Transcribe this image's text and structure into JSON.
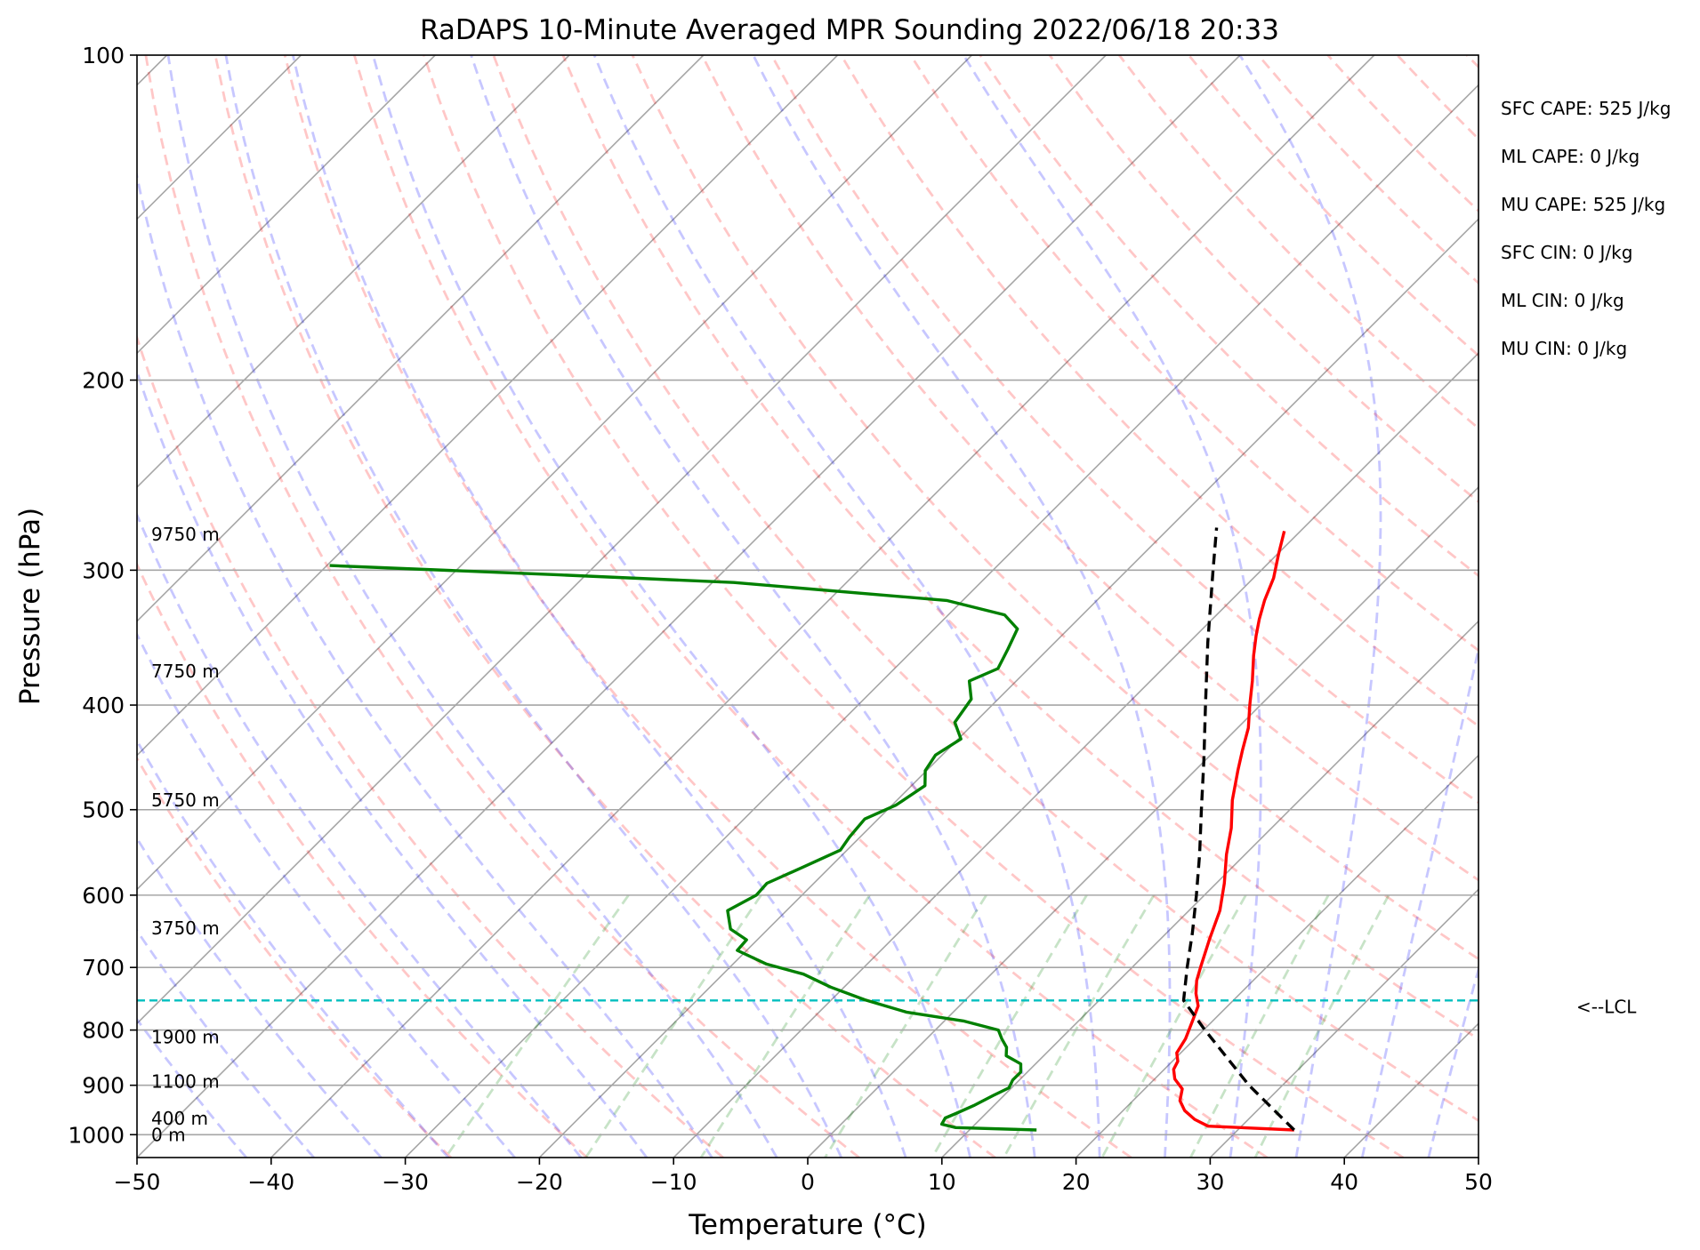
{
  "chart_data": {
    "type": "line",
    "subtype": "skew-t log-p sounding",
    "title": "RaDAPS 10-Minute Averaged MPR Sounding 2022/06/18 20:33",
    "xlabel": "Temperature (°C)",
    "ylabel": "Pressure (hPa)",
    "xlim": [
      -50,
      50
    ],
    "ylim": [
      1050,
      100
    ],
    "y_scale": "log",
    "x_ticks": [
      "−50",
      "−40",
      "−30",
      "−20",
      "−10",
      "0",
      "10",
      "20",
      "30",
      "40",
      "50"
    ],
    "y_ticks": [
      "100",
      "200",
      "300",
      "400",
      "500",
      "600",
      "700",
      "800",
      "900",
      "1000"
    ],
    "height_labels": [
      {
        "text": "9750 m",
        "pressure": 278
      },
      {
        "text": "7750 m",
        "pressure": 372
      },
      {
        "text": "5750 m",
        "pressure": 490
      },
      {
        "text": "3750 m",
        "pressure": 644
      },
      {
        "text": "1900 m",
        "pressure": 812
      },
      {
        "text": "1100 m",
        "pressure": 893
      },
      {
        "text": "400 m",
        "pressure": 966
      },
      {
        "text": "0 m",
        "pressure": 1000
      }
    ],
    "indices": [
      "SFC CAPE: 525 J/kg",
      "ML CAPE: 0 J/kg",
      "MU CAPE: 525 J/kg",
      "SFC CIN: 0 J/kg",
      "ML CIN: 0 J/kg",
      "MU CIN: 0 J/kg"
    ],
    "lcl": {
      "label": "<--LCL",
      "pressure": 751
    },
    "series": [
      {
        "color": "#ff0000",
        "points": [
          [
            990,
            34.2
          ],
          [
            982,
            27.5
          ],
          [
            968,
            26.0
          ],
          [
            950,
            24.6
          ],
          [
            930,
            23.5
          ],
          [
            907,
            22.8
          ],
          [
            888,
            21.5
          ],
          [
            870,
            20.7
          ],
          [
            855,
            20.4
          ],
          [
            840,
            19.7
          ],
          [
            815,
            19.3
          ],
          [
            785,
            18.5
          ],
          [
            760,
            17.8
          ],
          [
            740,
            16.7
          ],
          [
            720,
            15.8
          ],
          [
            700,
            15.1
          ],
          [
            660,
            13.7
          ],
          [
            620,
            12.3
          ],
          [
            585,
            10.6
          ],
          [
            550,
            8.6
          ],
          [
            520,
            7.0
          ],
          [
            490,
            5.0
          ],
          [
            460,
            3.2
          ],
          [
            440,
            2.0
          ],
          [
            420,
            0.8
          ],
          [
            400,
            -0.8
          ],
          [
            380,
            -2.4
          ],
          [
            360,
            -4.2
          ],
          [
            345,
            -5.5
          ],
          [
            333,
            -6.5
          ],
          [
            320,
            -7.5
          ],
          [
            305,
            -8.5
          ],
          [
            290,
            -9.9
          ],
          [
            276,
            -11.2
          ]
        ]
      },
      {
        "color": "#008000",
        "points": [
          [
            990,
            15.0
          ],
          [
            985,
            8.8
          ],
          [
            978,
            7.5
          ],
          [
            965,
            7.3
          ],
          [
            955,
            7.8
          ],
          [
            940,
            8.5
          ],
          [
            920,
            9.2
          ],
          [
            905,
            9.8
          ],
          [
            890,
            9.5
          ],
          [
            875,
            9.5
          ],
          [
            860,
            8.9
          ],
          [
            845,
            7.2
          ],
          [
            830,
            6.6
          ],
          [
            815,
            5.6
          ],
          [
            800,
            4.7
          ],
          [
            785,
            1.5
          ],
          [
            770,
            -3.5
          ],
          [
            750,
            -7.5
          ],
          [
            730,
            -11.0
          ],
          [
            710,
            -14.0
          ],
          [
            695,
            -17.5
          ],
          [
            675,
            -20.7
          ],
          [
            660,
            -20.8
          ],
          [
            645,
            -22.8
          ],
          [
            620,
            -24.4
          ],
          [
            600,
            -23.4
          ],
          [
            585,
            -23.5
          ],
          [
            565,
            -22.0
          ],
          [
            545,
            -20.5
          ],
          [
            530,
            -20.8
          ],
          [
            510,
            -21.0
          ],
          [
            495,
            -19.7
          ],
          [
            475,
            -19.0
          ],
          [
            460,
            -20.1
          ],
          [
            445,
            -20.5
          ],
          [
            430,
            -19.8
          ],
          [
            415,
            -21.5
          ],
          [
            395,
            -22.0
          ],
          [
            380,
            -23.5
          ],
          [
            370,
            -22.3
          ],
          [
            355,
            -23.0
          ],
          [
            340,
            -23.8
          ],
          [
            330,
            -25.8
          ],
          [
            320,
            -31.2
          ],
          [
            308,
            -48.4
          ],
          [
            303,
            -62.0
          ],
          [
            297,
            -79.8
          ]
        ]
      },
      {
        "color": "#000000",
        "dashed": true,
        "points": [
          [
            990,
            34.2
          ],
          [
            900,
            27.5
          ],
          [
            800,
            20.1
          ],
          [
            751,
            16.3
          ],
          [
            700,
            14.1
          ],
          [
            650,
            11.9
          ],
          [
            600,
            9.4
          ],
          [
            550,
            6.6
          ],
          [
            500,
            3.4
          ],
          [
            450,
            -0.1
          ],
          [
            400,
            -4.1
          ],
          [
            350,
            -8.6
          ],
          [
            300,
            -13.6
          ],
          [
            274,
            -16.5
          ]
        ]
      }
    ],
    "background_lines": [
      "skewed isotherms",
      "dry adiabats",
      "moist adiabats",
      "mixing ratio lines",
      "isobars"
    ]
  }
}
